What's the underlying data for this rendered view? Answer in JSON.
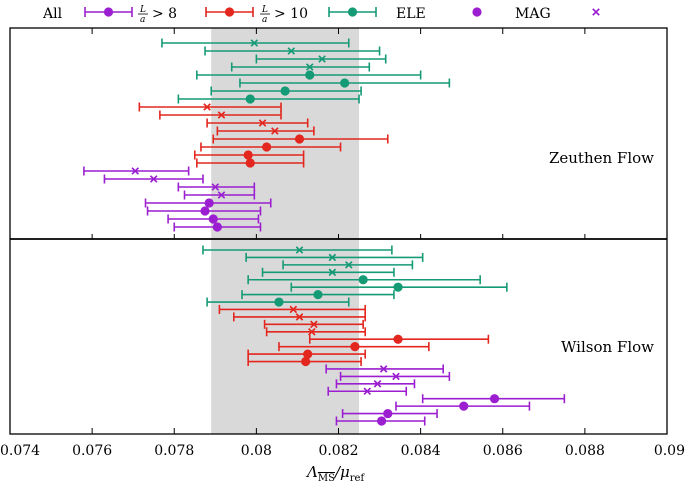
{
  "chart_data": {
    "type": "scatter",
    "title": "",
    "xlabel": "Λ_MS-bar / μ_ref",
    "xlabel_parts": {
      "main": "Λ",
      "sub": "MS",
      "rest": "/μ",
      "ref": "ref"
    },
    "xlim": [
      0.074,
      0.09
    ],
    "xticks": [
      "0.074",
      "0.076",
      "0.078",
      "0.08",
      "0.082",
      "0.084",
      "0.086",
      "0.088",
      "0.09"
    ],
    "band": {
      "low": 0.0789,
      "high": 0.0825,
      "color": "#d9d9d9"
    },
    "legend": {
      "placement": "top",
      "entries": [
        {
          "label": "All",
          "style": "errorbar",
          "color": "#9b1fd1"
        },
        {
          "label_main": "L",
          "label_den": "a",
          "label_rest": "> 8",
          "style": "errorbar",
          "color": "#e3261e"
        },
        {
          "label_main": "L",
          "label_den": "a",
          "label_rest": "> 10",
          "style": "errorbar",
          "color": "#159a76"
        },
        {
          "label": "ELE",
          "style": "dot",
          "color": "#9b1fd1"
        },
        {
          "label": "MAG",
          "style": "cross",
          "color": "#9b1fd1"
        }
      ]
    },
    "colors": {
      "All": "#9b1fd1",
      "L8": "#e3261e",
      "L10": "#159a76"
    },
    "panels": [
      {
        "name": "Zeuthen Flow",
        "points": [
          {
            "series": "L10",
            "marker": "x",
            "value": 0.07995,
            "lo": 0.0777,
            "hi": 0.08225
          },
          {
            "series": "L10",
            "marker": "x",
            "value": 0.08085,
            "lo": 0.07875,
            "hi": 0.083
          },
          {
            "series": "L10",
            "marker": "x",
            "value": 0.0816,
            "lo": 0.08,
            "hi": 0.08315
          },
          {
            "series": "L10",
            "marker": "x",
            "value": 0.0813,
            "lo": 0.0794,
            "hi": 0.08275
          },
          {
            "series": "L10",
            "marker": "o",
            "value": 0.0813,
            "lo": 0.07855,
            "hi": 0.084
          },
          {
            "series": "L10",
            "marker": "o",
            "value": 0.08215,
            "lo": 0.0796,
            "hi": 0.0847
          },
          {
            "series": "L10",
            "marker": "o",
            "value": 0.0807,
            "lo": 0.0789,
            "hi": 0.08255
          },
          {
            "series": "L10",
            "marker": "o",
            "value": 0.07985,
            "lo": 0.0781,
            "hi": 0.0825
          },
          {
            "series": "L8",
            "marker": "x",
            "value": 0.0788,
            "lo": 0.07715,
            "hi": 0.0806
          },
          {
            "series": "L8",
            "marker": "x",
            "value": 0.07915,
            "lo": 0.07765,
            "hi": 0.0806
          },
          {
            "series": "L8",
            "marker": "x",
            "value": 0.08015,
            "lo": 0.0788,
            "hi": 0.08125
          },
          {
            "series": "L8",
            "marker": "x",
            "value": 0.08045,
            "lo": 0.07905,
            "hi": 0.0814
          },
          {
            "series": "L8",
            "marker": "o",
            "value": 0.08105,
            "lo": 0.07895,
            "hi": 0.0832
          },
          {
            "series": "L8",
            "marker": "o",
            "value": 0.08025,
            "lo": 0.07865,
            "hi": 0.08205
          },
          {
            "series": "L8",
            "marker": "o",
            "value": 0.0798,
            "lo": 0.0785,
            "hi": 0.08115
          },
          {
            "series": "L8",
            "marker": "o",
            "value": 0.07985,
            "lo": 0.07855,
            "hi": 0.08115
          },
          {
            "series": "All",
            "marker": "x",
            "value": 0.07705,
            "lo": 0.0758,
            "hi": 0.07835
          },
          {
            "series": "All",
            "marker": "x",
            "value": 0.0775,
            "lo": 0.0763,
            "hi": 0.0787
          },
          {
            "series": "All",
            "marker": "x",
            "value": 0.079,
            "lo": 0.0781,
            "hi": 0.07995
          },
          {
            "series": "All",
            "marker": "x",
            "value": 0.07915,
            "lo": 0.07825,
            "hi": 0.07995
          },
          {
            "series": "All",
            "marker": "o",
            "value": 0.07885,
            "lo": 0.0773,
            "hi": 0.08035
          },
          {
            "series": "All",
            "marker": "o",
            "value": 0.07875,
            "lo": 0.07735,
            "hi": 0.0801
          },
          {
            "series": "All",
            "marker": "o",
            "value": 0.07895,
            "lo": 0.07785,
            "hi": 0.08005
          },
          {
            "series": "All",
            "marker": "o",
            "value": 0.07905,
            "lo": 0.078,
            "hi": 0.0801
          }
        ]
      },
      {
        "name": "Wilson Flow",
        "points": [
          {
            "series": "L10",
            "marker": "x",
            "value": 0.08105,
            "lo": 0.0787,
            "hi": 0.0833
          },
          {
            "series": "L10",
            "marker": "x",
            "value": 0.08185,
            "lo": 0.07975,
            "hi": 0.08405
          },
          {
            "series": "L10",
            "marker": "x",
            "value": 0.08225,
            "lo": 0.08065,
            "hi": 0.0838
          },
          {
            "series": "L10",
            "marker": "x",
            "value": 0.08185,
            "lo": 0.08015,
            "hi": 0.08335
          },
          {
            "series": "L10",
            "marker": "o",
            "value": 0.0826,
            "lo": 0.0798,
            "hi": 0.08545
          },
          {
            "series": "L10",
            "marker": "o",
            "value": 0.08345,
            "lo": 0.08085,
            "hi": 0.0861
          },
          {
            "series": "L10",
            "marker": "o",
            "value": 0.0815,
            "lo": 0.07965,
            "hi": 0.08335
          },
          {
            "series": "L10",
            "marker": "o",
            "value": 0.08055,
            "lo": 0.0788,
            "hi": 0.08225
          },
          {
            "series": "L8",
            "marker": "x",
            "value": 0.0809,
            "lo": 0.0791,
            "hi": 0.08265
          },
          {
            "series": "L8",
            "marker": "x",
            "value": 0.08105,
            "lo": 0.07945,
            "hi": 0.08265
          },
          {
            "series": "L8",
            "marker": "x",
            "value": 0.0814,
            "lo": 0.0802,
            "hi": 0.0826
          },
          {
            "series": "L8",
            "marker": "x",
            "value": 0.08135,
            "lo": 0.08025,
            "hi": 0.08265
          },
          {
            "series": "L8",
            "marker": "o",
            "value": 0.08345,
            "lo": 0.0813,
            "hi": 0.08565
          },
          {
            "series": "L8",
            "marker": "o",
            "value": 0.0824,
            "lo": 0.08055,
            "hi": 0.0842
          },
          {
            "series": "L8",
            "marker": "o",
            "value": 0.08125,
            "lo": 0.0798,
            "hi": 0.08265
          },
          {
            "series": "L8",
            "marker": "o",
            "value": 0.0812,
            "lo": 0.0798,
            "hi": 0.08255
          },
          {
            "series": "All",
            "marker": "x",
            "value": 0.0831,
            "lo": 0.0817,
            "hi": 0.08455
          },
          {
            "series": "All",
            "marker": "x",
            "value": 0.0834,
            "lo": 0.08205,
            "hi": 0.0847
          },
          {
            "series": "All",
            "marker": "x",
            "value": 0.08295,
            "lo": 0.08195,
            "hi": 0.08385
          },
          {
            "series": "All",
            "marker": "x",
            "value": 0.0827,
            "lo": 0.08175,
            "hi": 0.08365
          },
          {
            "series": "All",
            "marker": "o",
            "value": 0.0858,
            "lo": 0.08405,
            "hi": 0.0875
          },
          {
            "series": "All",
            "marker": "o",
            "value": 0.08505,
            "lo": 0.0834,
            "hi": 0.08665
          },
          {
            "series": "All",
            "marker": "o",
            "value": 0.0832,
            "lo": 0.0821,
            "hi": 0.0844
          },
          {
            "series": "All",
            "marker": "o",
            "value": 0.08305,
            "lo": 0.08195,
            "hi": 0.0841
          }
        ]
      }
    ]
  }
}
